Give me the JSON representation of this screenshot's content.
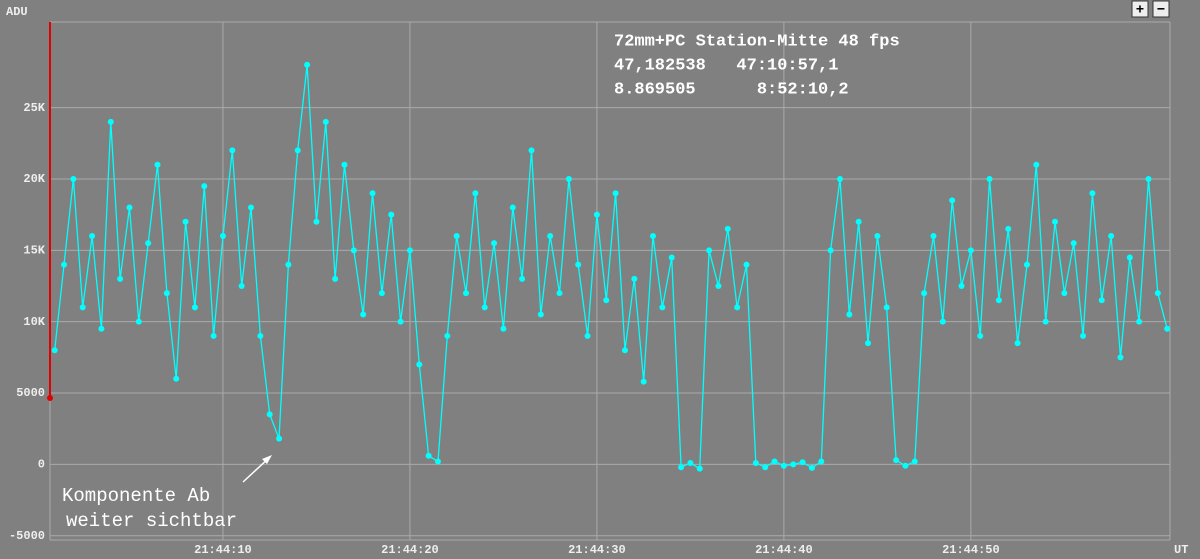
{
  "chart_data": {
    "type": "line",
    "y_label": "ADU",
    "x_label": "UT",
    "info_lines": [
      "72mm+PC Station-Mitte 48 fps",
      "47,182538   47:10:57,1",
      "8.869505      8:52:10,2"
    ],
    "annotation": [
      "Komponente Ab",
      "weiter sichtbar"
    ],
    "buttons": [
      "+",
      "−"
    ],
    "color": "#00ffff",
    "grid": true,
    "xlim": [
      78240.75,
      78300.65
    ],
    "ylim": [
      -5300,
      31000
    ],
    "xticks": [
      {
        "value": 78250,
        "label": "21:44:10"
      },
      {
        "value": 78260,
        "label": "21:44:20"
      },
      {
        "value": 78270,
        "label": "21:44:30"
      },
      {
        "value": 78280,
        "label": "21:44:40"
      },
      {
        "value": 78290,
        "label": "21:44:50"
      }
    ],
    "yticks": [
      -5000,
      0,
      5000,
      {
        "value": 10000,
        "label": "10K"
      },
      {
        "value": 15000,
        "label": "15K"
      },
      {
        "value": 20000,
        "label": "20K"
      },
      {
        "value": 25000,
        "label": "25K"
      }
    ],
    "x": [
      78241,
      78241.5,
      78242,
      78242.5,
      78243,
      78243.5,
      78244,
      78244.5,
      78245,
      78245.5,
      78246,
      78246.5,
      78247,
      78247.5,
      78248,
      78248.5,
      78249,
      78249.5,
      78250,
      78250.5,
      78251,
      78251.5,
      78252,
      78252.5,
      78253,
      78253.5,
      78254,
      78254.5,
      78255,
      78255.5,
      78256,
      78256.5,
      78257,
      78257.5,
      78258,
      78258.5,
      78259,
      78259.5,
      78260,
      78260.5,
      78261,
      78261.5,
      78262,
      78262.5,
      78263,
      78263.5,
      78264,
      78264.5,
      78265,
      78265.5,
      78266,
      78266.5,
      78267,
      78267.5,
      78268,
      78268.5,
      78269,
      78269.5,
      78270,
      78270.5,
      78271,
      78271.5,
      78272,
      78272.5,
      78273,
      78273.5,
      78274,
      78274.5,
      78275,
      78275.5,
      78276,
      78276.5,
      78277,
      78277.5,
      78278,
      78278.5,
      78279,
      78279.5,
      78280,
      78280.5,
      78281,
      78281.5,
      78282,
      78282.5,
      78283,
      78283.5,
      78284,
      78284.5,
      78285,
      78285.5,
      78286,
      78286.5,
      78287,
      78287.5,
      78288,
      78288.5,
      78289,
      78289.5,
      78290,
      78290.5,
      78291,
      78291.5,
      78292,
      78292.5,
      78293,
      78293.5,
      78294,
      78294.5,
      78295,
      78295.5,
      78296,
      78296.5,
      78297,
      78297.5,
      78298,
      78298.5,
      78299,
      78299.5,
      78300,
      78300.5
    ],
    "values": [
      8000,
      14000,
      20000,
      11000,
      16000,
      9500,
      24000,
      13000,
      18000,
      10000,
      15500,
      21000,
      12000,
      6000,
      17000,
      11000,
      19500,
      9000,
      16000,
      22000,
      12500,
      18000,
      9000,
      3500,
      1800,
      14000,
      22000,
      28000,
      17000,
      24000,
      13000,
      21000,
      15000,
      10500,
      19000,
      12000,
      17500,
      10000,
      15000,
      7000,
      600,
      200,
      9000,
      16000,
      12000,
      19000,
      11000,
      15500,
      9500,
      18000,
      13000,
      22000,
      10500,
      16000,
      12000,
      20000,
      14000,
      9000,
      17500,
      11500,
      19000,
      8000,
      13000,
      5800,
      16000,
      11000,
      14500,
      -200,
      100,
      -300,
      15000,
      12500,
      16500,
      11000,
      14000,
      100,
      -200,
      200,
      -100,
      0,
      150,
      -250,
      200,
      15000,
      20000,
      10500,
      17000,
      8500,
      16000,
      11000,
      300,
      -100,
      200,
      12000,
      16000,
      10000,
      18500,
      12500,
      15000,
      9000,
      20000,
      11500,
      16500,
      8500,
      14000,
      21000,
      10000,
      17000,
      12000,
      15500,
      9000,
      19000,
      11500,
      16000,
      7500,
      14500,
      10000,
      20000,
      12000,
      9500
    ]
  }
}
